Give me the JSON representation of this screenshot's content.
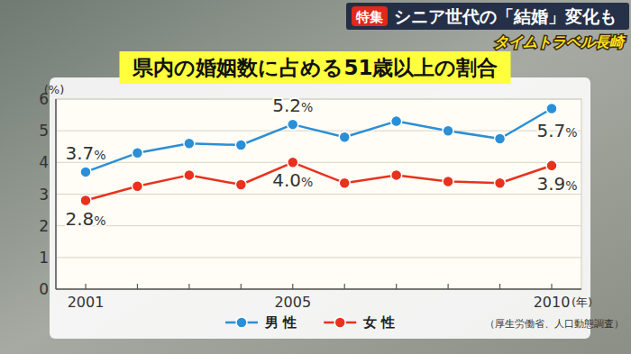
{
  "chart_data": {
    "type": "line",
    "title": "県内の婚姻数に占める51歳以上の割合",
    "subtitle": "シニア世代の「結婚」変化も",
    "annotations": [
      "特集",
      "タイムトラベル長崎",
      "（厚生労働省、人口動態調査）"
    ],
    "xlabel": "(年)",
    "ylabel": "(%)",
    "categories": [
      "2001",
      null,
      null,
      null,
      "2005",
      null,
      null,
      null,
      null,
      "2010"
    ],
    "series": [
      {
        "name": "男 性",
        "color": "#2b8fd6",
        "marker": "circle",
        "line_style": "solid",
        "values": [
          3.7,
          4.3,
          4.6,
          4.55,
          5.2,
          4.8,
          5.3,
          5.0,
          4.75,
          5.7
        ],
        "value_labels": [
          "3.7%",
          null,
          null,
          null,
          "5.2%",
          null,
          null,
          null,
          null,
          "5.7%"
        ]
      },
      {
        "name": "女 性",
        "color": "#e8321e",
        "marker": "circle",
        "line_style": "solid",
        "values": [
          2.8,
          3.25,
          3.6,
          3.3,
          4.0,
          3.35,
          3.6,
          3.4,
          3.35,
          3.9
        ],
        "value_labels": [
          "2.8%",
          null,
          null,
          null,
          "4.0%",
          null,
          null,
          null,
          null,
          "3.9%"
        ]
      }
    ],
    "ylim": [
      0,
      6
    ],
    "yticks": [
      0,
      1,
      2,
      3,
      4,
      5,
      6
    ],
    "grid": true,
    "legend": "bottom",
    "data_labels": true
  }
}
